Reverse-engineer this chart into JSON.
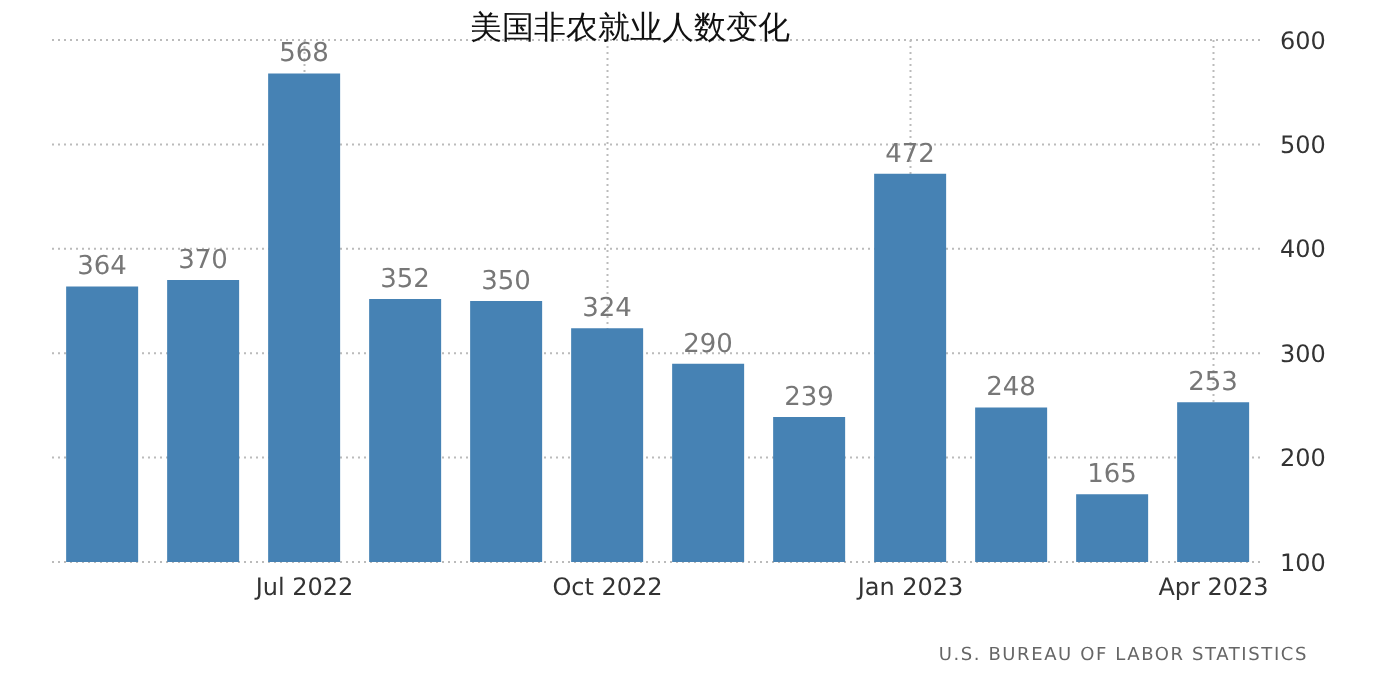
{
  "chart_data": {
    "type": "bar",
    "title": "美国非农就业人数变化",
    "categories": [
      null,
      null,
      "Jul 2022",
      null,
      null,
      "Oct 2022",
      null,
      null,
      "Jan 2023",
      null,
      null,
      "Apr 2023"
    ],
    "values": [
      364,
      370,
      568,
      352,
      350,
      324,
      290,
      239,
      472,
      248,
      165,
      253
    ],
    "color": "#4682b4",
    "ylim": [
      100,
      600
    ],
    "yticks": [
      100,
      200,
      300,
      400,
      500,
      600
    ],
    "grid": true,
    "data_labels": true,
    "annotations": [
      "U.S. BUREAU OF LABOR STATISTICS"
    ]
  }
}
